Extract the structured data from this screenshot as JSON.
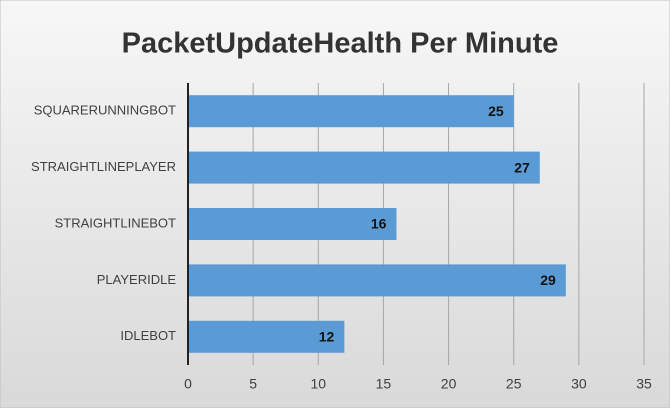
{
  "chart_data": {
    "type": "barh",
    "title": "PacketUpdateHealth Per Minute",
    "categories": [
      "SQUARERUNNINGBOT",
      "STRAIGHTLINEPLAYER",
      "STRAIGHTLINEBOT",
      "PLAYERIDLE",
      "IDLEBOT"
    ],
    "values": [
      25,
      27,
      16,
      29,
      12
    ],
    "color": "#5b9bd5",
    "xlim": [
      0,
      35
    ],
    "xticks": [
      0,
      5,
      10,
      15,
      20,
      25,
      30,
      35
    ],
    "grid": true
  }
}
